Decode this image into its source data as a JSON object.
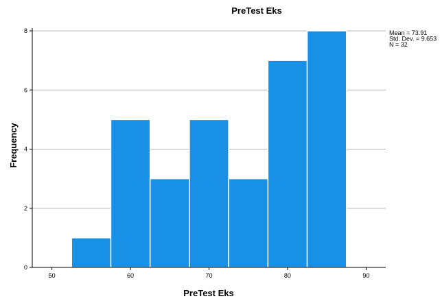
{
  "chart_data": {
    "type": "bar",
    "title": "PreTest Eks",
    "xlabel": "PreTest Eks",
    "ylabel": "Frequency",
    "bins": [
      {
        "from": 52.5,
        "to": 57.5,
        "count": 1
      },
      {
        "from": 57.5,
        "to": 62.5,
        "count": 5
      },
      {
        "from": 62.5,
        "to": 67.5,
        "count": 3
      },
      {
        "from": 67.5,
        "to": 72.5,
        "count": 5
      },
      {
        "from": 72.5,
        "to": 77.5,
        "count": 3
      },
      {
        "from": 77.5,
        "to": 82.5,
        "count": 7
      },
      {
        "from": 82.5,
        "to": 87.5,
        "count": 8
      }
    ],
    "xlim": [
      47.5,
      92.5
    ],
    "ylim": [
      0,
      8
    ],
    "xticks": [
      50,
      60,
      70,
      80,
      90
    ],
    "yticks": [
      0,
      2,
      4,
      6,
      8
    ],
    "grid": true,
    "bar_color": "#1790e6",
    "stats": [
      "Mean = 73.91",
      "Std. Dev. = 9.653",
      "N = 32"
    ],
    "stats_placement": "top-right"
  }
}
